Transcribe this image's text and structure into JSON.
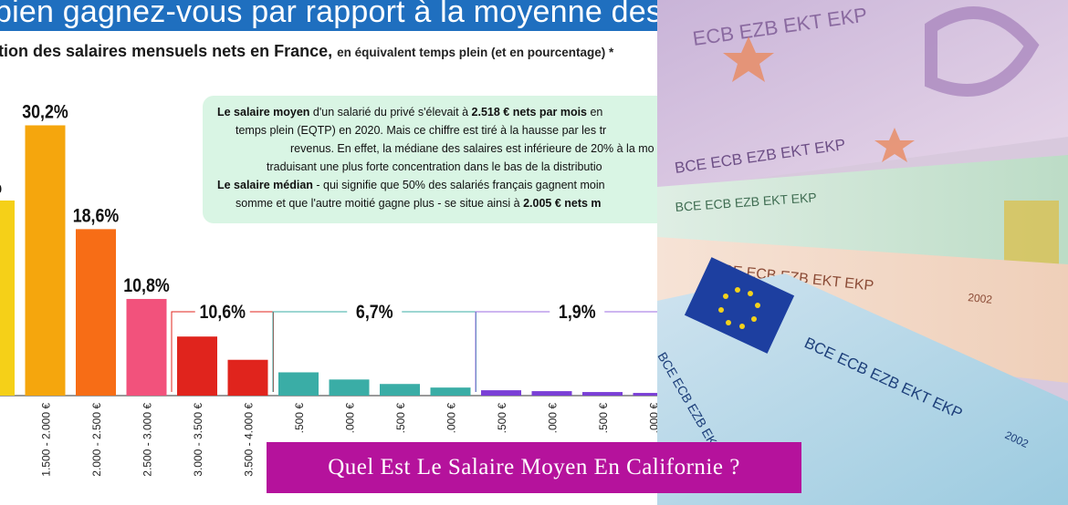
{
  "header": {
    "title": "bien gagnez-vous par rapport à la moyenne des Franç",
    "subtitle_main": "tion des salaires mensuels nets en France,",
    "subtitle_note": "en équivalent temps plein (et en pourcentage) *"
  },
  "infobox": {
    "line1_bold": "Le salaire moyen",
    "line1_rest": " d'un salarié du privé s'élevait à ",
    "line1_value": "2.518 € nets par mois",
    "line1_end": " en",
    "line2": "temps plein (EQTP) en 2020. Mais ce chiffre est tiré à la hausse par les tr",
    "line3": "revenus. En effet, la médiane des salaires est inférieure de 20% à la mo",
    "line4": "traduisant une plus forte concentration dans le bas de la distributio",
    "line5_bold": "Le salaire médian",
    "line5_rest": " - qui signifie que 50% des salariés français gagnent moin",
    "line6_rest": "somme et que l'autre moitié gagne plus - se situe ainsi à ",
    "line6_value": "2.005 € nets m"
  },
  "chart_data": {
    "type": "bar",
    "title": "",
    "ylabel": "",
    "ylim": [
      0,
      33
    ],
    "categories": [
      "",
      "1.500 - 2.000 €",
      "2.000 - 2.500 €",
      "2.500 - 3.000 €",
      "3.000 - 3.500 €",
      "3.500 - 4.000 €",
      ".500 €",
      ".000 €",
      ".500 €",
      ".000 €",
      ".500 €",
      ".000 €",
      ".500 €",
      ".000 €"
    ],
    "values": [
      21.8,
      30.2,
      18.6,
      10.8,
      6.6,
      4.0,
      2.6,
      1.8,
      1.3,
      0.9,
      0.6,
      0.5,
      0.4,
      0.3
    ],
    "colors": [
      "#f5d018",
      "#f5a60d",
      "#f76d16",
      "#f2527c",
      "#e0241d",
      "#e0241d",
      "#3aada6",
      "#3aada6",
      "#3aada6",
      "#3aada6",
      "#7a3fd6",
      "#7a3fd6",
      "#7a3fd6",
      "#7a3fd6"
    ],
    "value_labels": [
      "%",
      "30,2%",
      "18,6%",
      "10,8%",
      "",
      "",
      "",
      "",
      "",
      "",
      "",
      "",
      "",
      ""
    ],
    "group_labels": [
      {
        "label": "10,6%",
        "from": 4,
        "to": 5,
        "color": "#e0241d"
      },
      {
        "label": "6,7%",
        "from": 6,
        "to": 9,
        "color": "#3aada6"
      },
      {
        "label": "1,9%",
        "from": 10,
        "to": 13,
        "color": "#9b6de0"
      }
    ]
  },
  "caption": "Quel Est Le Salaire Moyen En Californie ?"
}
